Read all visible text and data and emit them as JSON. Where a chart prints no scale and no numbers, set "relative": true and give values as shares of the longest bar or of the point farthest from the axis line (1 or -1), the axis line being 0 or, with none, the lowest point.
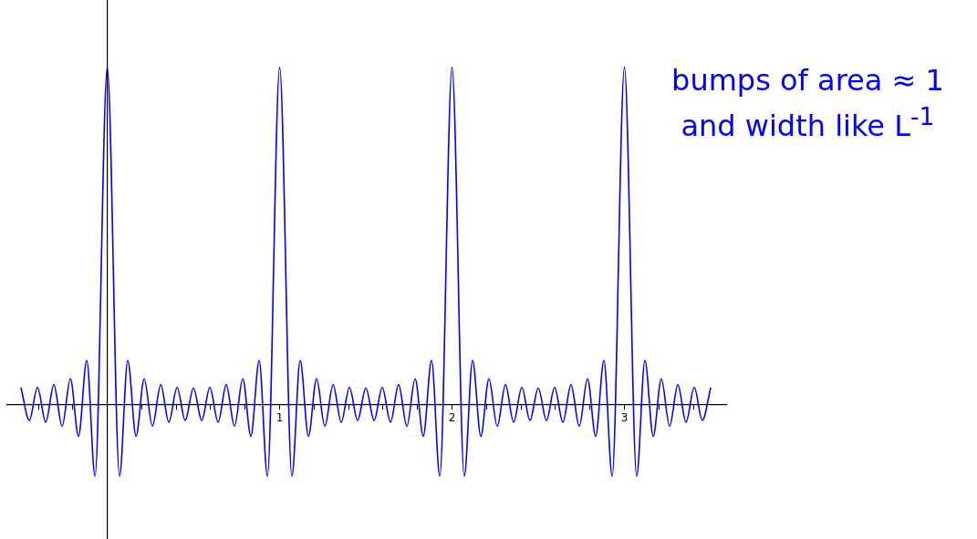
{
  "chart_data": {
    "type": "line",
    "relative": true,
    "color": "#0000ff",
    "marker": "none",
    "tick_labels": "x",
    "xlim": [
      -0.58,
      3.59
    ],
    "xticks": [
      {
        "value": -0.4,
        "label": null
      },
      {
        "value": -0.2,
        "label": null
      },
      {
        "value": 0,
        "label": null
      },
      {
        "value": 0.2,
        "label": null
      },
      {
        "value": 0.4,
        "label": null
      },
      {
        "value": 0.6,
        "label": null
      },
      {
        "value": 0.8,
        "label": null
      },
      1,
      {
        "value": 1.2,
        "label": null
      },
      {
        "value": 1.4,
        "label": null
      },
      {
        "value": 1.6,
        "label": null
      },
      {
        "value": 1.8,
        "label": null
      },
      2,
      {
        "value": 2.2,
        "label": null
      },
      {
        "value": 2.4,
        "label": null
      },
      {
        "value": 2.6,
        "label": null
      },
      {
        "value": 2.8,
        "label": null
      },
      3,
      {
        "value": 3.2,
        "label": null
      },
      {
        "value": 3.4,
        "label": null
      }
    ],
    "x": [
      -0.5,
      -0.452,
      -0.405,
      -0.357,
      -0.31,
      -0.262,
      -0.214,
      -0.167,
      -0.119,
      -0.071,
      0,
      0.071,
      0.119,
      0.167,
      0.214,
      0.262,
      0.31,
      0.357,
      0.405,
      0.452,
      0.5,
      0.548,
      0.595,
      0.643,
      0.69,
      0.738,
      0.786,
      0.833,
      0.881,
      0.929,
      1,
      1.071,
      1.119,
      1.167,
      1.214,
      1.262,
      1.31,
      1.357,
      1.405,
      1.452,
      1.5,
      1.548,
      1.595,
      1.643,
      1.69,
      1.738,
      1.786,
      1.833,
      1.881,
      1.929,
      2,
      2.071,
      2.119,
      2.167,
      2.214,
      2.262,
      2.31,
      2.357,
      2.405,
      2.452,
      2.5,
      2.548,
      2.595,
      2.643,
      2.69,
      2.738,
      2.786,
      2.833,
      2.881,
      2.929,
      3,
      3.071,
      3.119,
      3.167,
      3.214,
      3.262,
      3.31,
      3.357,
      3.405,
      3.452,
      3.5
    ],
    "values": [
      0.048,
      -0.048,
      0.05,
      -0.053,
      0.058,
      -0.065,
      0.076,
      -0.095,
      0.13,
      -0.214,
      1,
      -0.214,
      0.13,
      -0.095,
      0.076,
      -0.065,
      0.058,
      -0.053,
      0.05,
      -0.048,
      0.048,
      -0.048,
      0.05,
      -0.053,
      0.058,
      -0.065,
      0.076,
      -0.095,
      0.13,
      -0.214,
      1,
      -0.214,
      0.13,
      -0.095,
      0.076,
      -0.065,
      0.058,
      -0.053,
      0.05,
      -0.048,
      0.048,
      -0.048,
      0.05,
      -0.053,
      0.058,
      -0.065,
      0.076,
      -0.095,
      0.13,
      -0.214,
      1,
      -0.214,
      0.13,
      -0.095,
      0.076,
      -0.065,
      0.058,
      -0.053,
      0.05,
      -0.048,
      0.048,
      -0.048,
      0.05,
      -0.053,
      0.058,
      -0.065,
      0.076,
      -0.095,
      0.13,
      -0.214,
      1,
      -0.214,
      0.13,
      -0.095,
      0.076,
      -0.065,
      0.058,
      -0.053,
      0.05,
      -0.048,
      0.048
    ],
    "annotations": [
      "bumps of area ≈ 1",
      "and width like L$^{-1}$"
    ]
  }
}
